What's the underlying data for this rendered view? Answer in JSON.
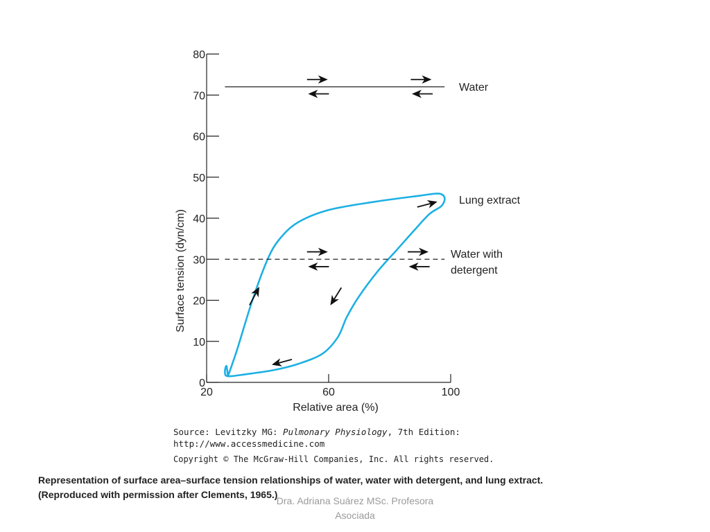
{
  "chart_data": {
    "type": "line",
    "xlabel": "Relative area (%)",
    "ylabel": "Surface tension (dyn/cm)",
    "xlim": [
      20,
      100
    ],
    "ylim": [
      0,
      80
    ],
    "xticks": [
      "20",
      "60",
      "100"
    ],
    "yticks": [
      "0",
      "10",
      "20",
      "30",
      "40",
      "50",
      "60",
      "70",
      "80"
    ],
    "grid": false,
    "series": [
      {
        "name": "Water",
        "style": "solid",
        "color": "#222222",
        "x": [
          26,
          98
        ],
        "y": [
          72,
          72
        ]
      },
      {
        "name": "Lung extract",
        "style": "solid",
        "color": "#1cb0e3",
        "x": [
          27,
          30,
          35,
          40,
          44,
          50,
          60,
          75,
          90,
          96,
          98,
          97,
          93,
          88,
          82,
          76,
          70,
          66,
          63,
          58,
          50,
          42,
          33,
          27,
          26,
          26.5,
          27
        ],
        "y": [
          1.5,
          8,
          20,
          30,
          35,
          39,
          42,
          44,
          45.5,
          46,
          45,
          43,
          41,
          37,
          32,
          27,
          21,
          16,
          11,
          7,
          4.5,
          3,
          2,
          1.5,
          2.5,
          4,
          1.5
        ]
      },
      {
        "name": "Water with detergent",
        "style": "dashed",
        "color": "#222222",
        "x": [
          26,
          98
        ],
        "y": [
          30,
          30
        ]
      }
    ],
    "legend_labels": [
      "Water",
      "Lung extract",
      "Water with",
      "detergent"
    ]
  },
  "source": {
    "prefix": "Source: Levitzky MG: ",
    "book": "Pulmonary Physiology",
    "suffix": ", 7th Edition:",
    "url": "http://www.accessmedicine.com",
    "copyright": "Copyright © The McGraw-Hill Companies, Inc. All rights reserved."
  },
  "caption": {
    "line1": "Representation of surface area–surface tension relationships of water, water with detergent, and lung extract.",
    "line2": "(Reproduced with permission after Clements, 1965.)"
  },
  "footer": {
    "line1": "Dra. Adriana Suárez MSc. Profesora",
    "line2": "Asociada"
  }
}
